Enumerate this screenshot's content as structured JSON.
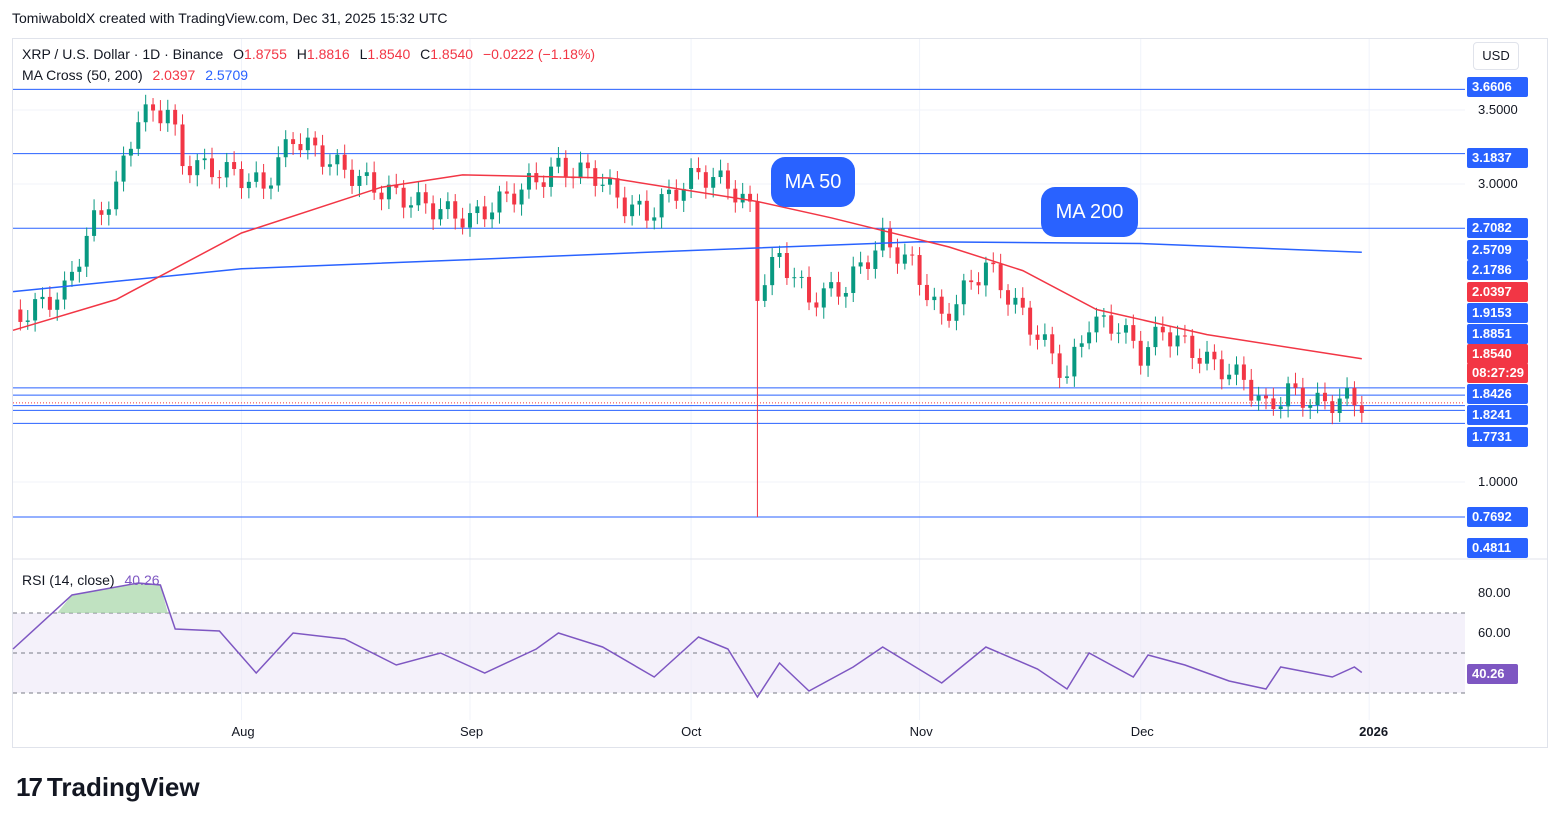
{
  "caption": "TomiwaboldX created with TradingView.com, Dec 31, 2025 15:32 UTC",
  "brand": {
    "logo": "17",
    "name": "TradingView"
  },
  "currency_button": "USD",
  "legend": {
    "symbol": "XRP / U.S. Dollar · 1D · Binance",
    "open_label": "O",
    "open": "1.8755",
    "high_label": "H",
    "high": "1.8816",
    "low_label": "L",
    "low": "1.8540",
    "close_label": "C",
    "close": "1.8540",
    "change": "−0.0222 (−1.18%)",
    "ma_label": "MA Cross (50, 200)",
    "ma50_value": "2.0397",
    "ma200_value": "2.5709",
    "rsi_label": "RSI (14, close)",
    "rsi_value": "40.26"
  },
  "callouts": {
    "ma50": "MA 50",
    "ma200": "MA 200"
  },
  "colors": {
    "up": "#089981",
    "down": "#f23645",
    "ma50": "#f23645",
    "ma200": "#2962ff",
    "hline": "#2962ff",
    "rsi": "#7e57c2"
  },
  "price_badges": [
    {
      "text": "3.6606",
      "kind": "line"
    },
    {
      "text": "3.1837",
      "kind": "line"
    },
    {
      "text": "2.7082",
      "kind": "line"
    },
    {
      "text": "2.5709",
      "kind": "ma200"
    },
    {
      "text": "2.1786",
      "kind": "line"
    },
    {
      "text": "2.0397",
      "kind": "ma50"
    },
    {
      "text": "1.9153",
      "kind": "line"
    },
    {
      "text": "1.8851",
      "kind": "line"
    },
    {
      "text": "1.8540",
      "kind": "last"
    },
    {
      "text": "08:27:29",
      "kind": "timer"
    },
    {
      "text": "1.8426",
      "kind": "line"
    },
    {
      "text": "1.8241",
      "kind": "line"
    },
    {
      "text": "1.7731",
      "kind": "line"
    },
    {
      "text": "0.7692",
      "kind": "line"
    },
    {
      "text": "0.4811",
      "kind": "line"
    }
  ],
  "y_ticks": [
    "3.5000",
    "3.0000",
    "1.0000"
  ],
  "rsi_ticks": [
    "80.00",
    "60.00"
  ],
  "x_ticks": [
    "Aug",
    "Sep",
    "Oct",
    "Nov",
    "Dec",
    "2026"
  ],
  "chart_data": {
    "type": "candlestick",
    "symbol": "XRP / U.S. Dollar",
    "interval": "1D",
    "exchange": "Binance",
    "y_scale": "log",
    "x_ticks": [
      "Aug",
      "Sep",
      "Oct",
      "Nov",
      "Dec",
      "2026"
    ],
    "horizontal_levels": [
      3.6606,
      3.1837,
      2.7082,
      1.9153,
      1.8851,
      1.8426,
      1.8241,
      1.7731,
      0.7692,
      0.4811
    ],
    "ohlc_close_anchors": [
      {
        "date": "2025-07-01",
        "close": 2.22
      },
      {
        "date": "2025-07-08",
        "close": 2.36
      },
      {
        "date": "2025-07-12",
        "close": 2.75
      },
      {
        "date": "2025-07-15",
        "close": 2.95
      },
      {
        "date": "2025-07-18",
        "close": 3.45
      },
      {
        "date": "2025-07-22",
        "close": 3.5
      },
      {
        "date": "2025-07-24",
        "close": 3.12
      },
      {
        "date": "2025-07-31",
        "close": 3.05
      },
      {
        "date": "2025-08-04",
        "close": 2.96
      },
      {
        "date": "2025-08-08",
        "close": 3.3
      },
      {
        "date": "2025-08-14",
        "close": 3.1
      },
      {
        "date": "2025-08-19",
        "close": 2.96
      },
      {
        "date": "2025-08-25",
        "close": 2.86
      },
      {
        "date": "2025-09-01",
        "close": 2.76
      },
      {
        "date": "2025-09-08",
        "close": 2.95
      },
      {
        "date": "2025-09-13",
        "close": 3.09
      },
      {
        "date": "2025-09-18",
        "close": 3.04
      },
      {
        "date": "2025-09-22",
        "close": 2.85
      },
      {
        "date": "2025-09-25",
        "close": 2.79
      },
      {
        "date": "2025-10-02",
        "close": 3.05
      },
      {
        "date": "2025-10-06",
        "close": 2.98
      },
      {
        "date": "2025-10-09",
        "close": 2.82
      },
      {
        "date": "2025-10-10",
        "close": 2.36
      },
      {
        "date": "2025-10-13",
        "close": 2.55
      },
      {
        "date": "2025-10-17",
        "close": 2.32
      },
      {
        "date": "2025-10-22",
        "close": 2.39
      },
      {
        "date": "2025-10-27",
        "close": 2.64
      },
      {
        "date": "2025-10-31",
        "close": 2.5
      },
      {
        "date": "2025-11-04",
        "close": 2.22
      },
      {
        "date": "2025-11-10",
        "close": 2.5
      },
      {
        "date": "2025-11-14",
        "close": 2.29
      },
      {
        "date": "2025-11-21",
        "close": 1.96
      },
      {
        "date": "2025-11-24",
        "close": 2.21
      },
      {
        "date": "2025-11-28",
        "close": 2.19
      },
      {
        "date": "2025-12-01",
        "close": 2.06
      },
      {
        "date": "2025-12-04",
        "close": 2.17
      },
      {
        "date": "2025-12-10",
        "close": 2.03
      },
      {
        "date": "2025-12-15",
        "close": 1.95
      },
      {
        "date": "2025-12-18",
        "close": 1.83
      },
      {
        "date": "2025-12-21",
        "close": 1.9
      },
      {
        "date": "2025-12-25",
        "close": 1.85
      },
      {
        "date": "2025-12-29",
        "close": 1.87
      },
      {
        "date": "2025-12-31",
        "close": 1.854
      }
    ],
    "last_ohlc": {
      "open": 1.8755,
      "high": 1.8816,
      "low": 1.854,
      "close": 1.854,
      "change": -0.0222,
      "change_pct": -1.18
    },
    "october_10_low": 0.7692,
    "ma50_anchors": [
      {
        "date": "2025-07-01",
        "value": 2.17
      },
      {
        "date": "2025-07-15",
        "value": 2.32
      },
      {
        "date": "2025-08-01",
        "value": 2.68
      },
      {
        "date": "2025-08-20",
        "value": 2.96
      },
      {
        "date": "2025-08-31",
        "value": 3.04
      },
      {
        "date": "2025-09-20",
        "value": 3.02
      },
      {
        "date": "2025-10-10",
        "value": 2.87
      },
      {
        "date": "2025-10-20",
        "value": 2.77
      },
      {
        "date": "2025-11-05",
        "value": 2.6
      },
      {
        "date": "2025-11-15",
        "value": 2.47
      },
      {
        "date": "2025-11-25",
        "value": 2.27
      },
      {
        "date": "2025-12-10",
        "value": 2.15
      },
      {
        "date": "2025-12-31",
        "value": 2.0397
      }
    ],
    "ma200_anchors": [
      {
        "date": "2025-07-01",
        "value": 2.36
      },
      {
        "date": "2025-08-01",
        "value": 2.48
      },
      {
        "date": "2025-09-01",
        "value": 2.53
      },
      {
        "date": "2025-10-01",
        "value": 2.58
      },
      {
        "date": "2025-11-01",
        "value": 2.63
      },
      {
        "date": "2025-12-01",
        "value": 2.62
      },
      {
        "date": "2025-12-31",
        "value": 2.5709
      }
    ],
    "rsi": {
      "period": 14,
      "last": 40.26,
      "upper_band": 70,
      "middle_band": 50,
      "lower_band": 30,
      "ticks": [
        80,
        60
      ],
      "anchors": [
        {
          "date": "2025-07-01",
          "value": 52
        },
        {
          "date": "2025-07-09",
          "value": 79
        },
        {
          "date": "2025-07-18",
          "value": 85
        },
        {
          "date": "2025-07-21",
          "value": 84
        },
        {
          "date": "2025-07-23",
          "value": 62
        },
        {
          "date": "2025-07-29",
          "value": 61
        },
        {
          "date": "2025-08-03",
          "value": 40
        },
        {
          "date": "2025-08-08",
          "value": 60
        },
        {
          "date": "2025-08-15",
          "value": 57
        },
        {
          "date": "2025-08-22",
          "value": 44
        },
        {
          "date": "2025-08-28",
          "value": 50
        },
        {
          "date": "2025-09-03",
          "value": 40
        },
        {
          "date": "2025-09-10",
          "value": 52
        },
        {
          "date": "2025-09-13",
          "value": 60
        },
        {
          "date": "2025-09-19",
          "value": 53
        },
        {
          "date": "2025-09-26",
          "value": 38
        },
        {
          "date": "2025-10-02",
          "value": 58
        },
        {
          "date": "2025-10-06",
          "value": 52
        },
        {
          "date": "2025-10-10",
          "value": 28
        },
        {
          "date": "2025-10-13",
          "value": 45
        },
        {
          "date": "2025-10-17",
          "value": 31
        },
        {
          "date": "2025-10-23",
          "value": 43
        },
        {
          "date": "2025-10-27",
          "value": 53
        },
        {
          "date": "2025-11-04",
          "value": 35
        },
        {
          "date": "2025-11-10",
          "value": 53
        },
        {
          "date": "2025-11-17",
          "value": 42
        },
        {
          "date": "2025-11-21",
          "value": 32
        },
        {
          "date": "2025-11-24",
          "value": 50
        },
        {
          "date": "2025-11-30",
          "value": 38
        },
        {
          "date": "2025-12-02",
          "value": 49
        },
        {
          "date": "2025-12-07",
          "value": 44
        },
        {
          "date": "2025-12-13",
          "value": 36
        },
        {
          "date": "2025-12-18",
          "value": 32
        },
        {
          "date": "2025-12-20",
          "value": 43
        },
        {
          "date": "2025-12-27",
          "value": 38
        },
        {
          "date": "2025-12-30",
          "value": 43
        },
        {
          "date": "2025-12-31",
          "value": 40.26
        }
      ]
    }
  }
}
